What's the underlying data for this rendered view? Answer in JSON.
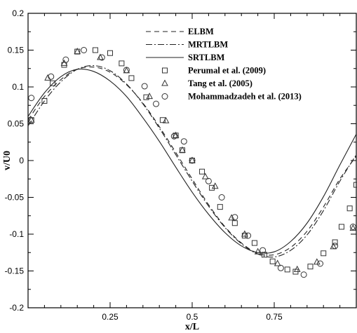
{
  "chart_data": {
    "type": "line",
    "xlabel": "x/L",
    "ylabel": "v/U0",
    "xlim": [
      0,
      1
    ],
    "ylim": [
      -0.2,
      0.2
    ],
    "x_ticks": [
      0.25,
      0.5,
      0.75
    ],
    "x_tick_labels": [
      "0.25",
      "0.5",
      "0.75"
    ],
    "y_ticks": [
      -0.2,
      -0.15,
      -0.1,
      -0.05,
      0,
      0.05,
      0.1,
      0.15,
      0.2
    ],
    "y_tick_labels": [
      "-0.2",
      "-0.15",
      "-0.1",
      "-0.05",
      "0",
      "0.05",
      "0.1",
      "0.15",
      "0.2"
    ],
    "grid": false,
    "legend_position": "top-right",
    "line_series": [
      {
        "name": "ELBM",
        "style": "dashed",
        "x": [
          0,
          0.05,
          0.1,
          0.15,
          0.2,
          0.25,
          0.3,
          0.35,
          0.4,
          0.45,
          0.5,
          0.55,
          0.6,
          0.65,
          0.7,
          0.75,
          0.8,
          0.85,
          0.9,
          0.95,
          1.0
        ],
        "y": [
          0.055,
          0.087,
          0.11,
          0.124,
          0.127,
          0.12,
          0.103,
          0.078,
          0.046,
          0.011,
          -0.025,
          -0.06,
          -0.09,
          -0.112,
          -0.126,
          -0.128,
          -0.118,
          -0.096,
          -0.063,
          -0.025,
          0.006
        ]
      },
      {
        "name": "MRTLBM",
        "style": "dashdot",
        "x": [
          0,
          0.05,
          0.1,
          0.15,
          0.2,
          0.25,
          0.3,
          0.35,
          0.4,
          0.45,
          0.5,
          0.55,
          0.6,
          0.65,
          0.7,
          0.75,
          0.8,
          0.85,
          0.9,
          0.95,
          1.0
        ],
        "y": [
          0.047,
          0.081,
          0.107,
          0.124,
          0.129,
          0.122,
          0.104,
          0.077,
          0.044,
          0.008,
          -0.028,
          -0.062,
          -0.091,
          -0.113,
          -0.127,
          -0.131,
          -0.122,
          -0.101,
          -0.068,
          -0.028,
          0.008
        ]
      },
      {
        "name": "SRTLBM",
        "style": "solid",
        "x": [
          0,
          0.05,
          0.1,
          0.15,
          0.2,
          0.25,
          0.3,
          0.35,
          0.4,
          0.45,
          0.5,
          0.55,
          0.6,
          0.65,
          0.7,
          0.75,
          0.8,
          0.85,
          0.9,
          0.95,
          1.0
        ],
        "y": [
          0.06,
          0.092,
          0.114,
          0.124,
          0.121,
          0.108,
          0.087,
          0.058,
          0.026,
          -0.009,
          -0.043,
          -0.073,
          -0.098,
          -0.116,
          -0.125,
          -0.124,
          -0.11,
          -0.085,
          -0.049,
          -0.006,
          0.036
        ]
      }
    ],
    "scatter_series": [
      {
        "name": "Perumal et al. (2009)",
        "marker": "square",
        "points": [
          [
            0.01,
            0.055
          ],
          [
            0.05,
            0.081
          ],
          [
            0.075,
            0.105
          ],
          [
            0.11,
            0.13
          ],
          [
            0.15,
            0.148
          ],
          [
            0.205,
            0.15
          ],
          [
            0.25,
            0.146
          ],
          [
            0.285,
            0.132
          ],
          [
            0.315,
            0.112
          ],
          [
            0.36,
            0.086
          ],
          [
            0.41,
            0.055
          ],
          [
            0.45,
            0.034
          ],
          [
            0.47,
            0.014
          ],
          [
            0.5,
            0.0
          ],
          [
            0.53,
            -0.015
          ],
          [
            0.56,
            -0.037
          ],
          [
            0.585,
            -0.063
          ],
          [
            0.63,
            -0.085
          ],
          [
            0.66,
            -0.102
          ],
          [
            0.69,
            -0.112
          ],
          [
            0.72,
            -0.128
          ],
          [
            0.745,
            -0.137
          ],
          [
            0.79,
            -0.148
          ],
          [
            0.815,
            -0.151
          ],
          [
            0.86,
            -0.144
          ],
          [
            0.9,
            -0.126
          ],
          [
            0.935,
            -0.111
          ],
          [
            0.955,
            -0.09
          ],
          [
            0.98,
            -0.065
          ],
          [
            1.0,
            -0.033
          ]
        ]
      },
      {
        "name": "Tang et al. (2005)",
        "marker": "triangle",
        "points": [
          [
            0.01,
            0.055
          ],
          [
            0.06,
            0.112
          ],
          [
            0.11,
            0.132
          ],
          [
            0.15,
            0.148
          ],
          [
            0.22,
            0.14
          ],
          [
            0.3,
            0.122
          ],
          [
            0.37,
            0.087
          ],
          [
            0.42,
            0.054
          ],
          [
            0.45,
            0.034
          ],
          [
            0.47,
            0.014
          ],
          [
            0.5,
            0.0
          ],
          [
            0.54,
            -0.022
          ],
          [
            0.57,
            -0.035
          ],
          [
            0.62,
            -0.078
          ],
          [
            0.66,
            -0.1
          ],
          [
            0.7,
            -0.124
          ],
          [
            0.76,
            -0.14
          ],
          [
            0.82,
            -0.148
          ],
          [
            0.88,
            -0.138
          ],
          [
            0.93,
            -0.117
          ],
          [
            0.99,
            -0.092
          ]
        ]
      },
      {
        "name": "Mohammadzadeh et al. (2013)",
        "marker": "circle",
        "points": [
          [
            0.01,
            0.085
          ],
          [
            0.07,
            0.114
          ],
          [
            0.115,
            0.137
          ],
          [
            0.17,
            0.15
          ],
          [
            0.225,
            0.14
          ],
          [
            0.3,
            0.123
          ],
          [
            0.355,
            0.101
          ],
          [
            0.39,
            0.077
          ],
          [
            0.445,
            0.033
          ],
          [
            0.475,
            0.026
          ],
          [
            0.5,
            0.0
          ],
          [
            0.55,
            -0.028
          ],
          [
            0.59,
            -0.05
          ],
          [
            0.63,
            -0.077
          ],
          [
            0.67,
            -0.102
          ],
          [
            0.715,
            -0.122
          ],
          [
            0.77,
            -0.146
          ],
          [
            0.84,
            -0.155
          ],
          [
            0.89,
            -0.14
          ],
          [
            0.935,
            -0.116
          ],
          [
            0.99,
            -0.09
          ]
        ]
      }
    ]
  }
}
